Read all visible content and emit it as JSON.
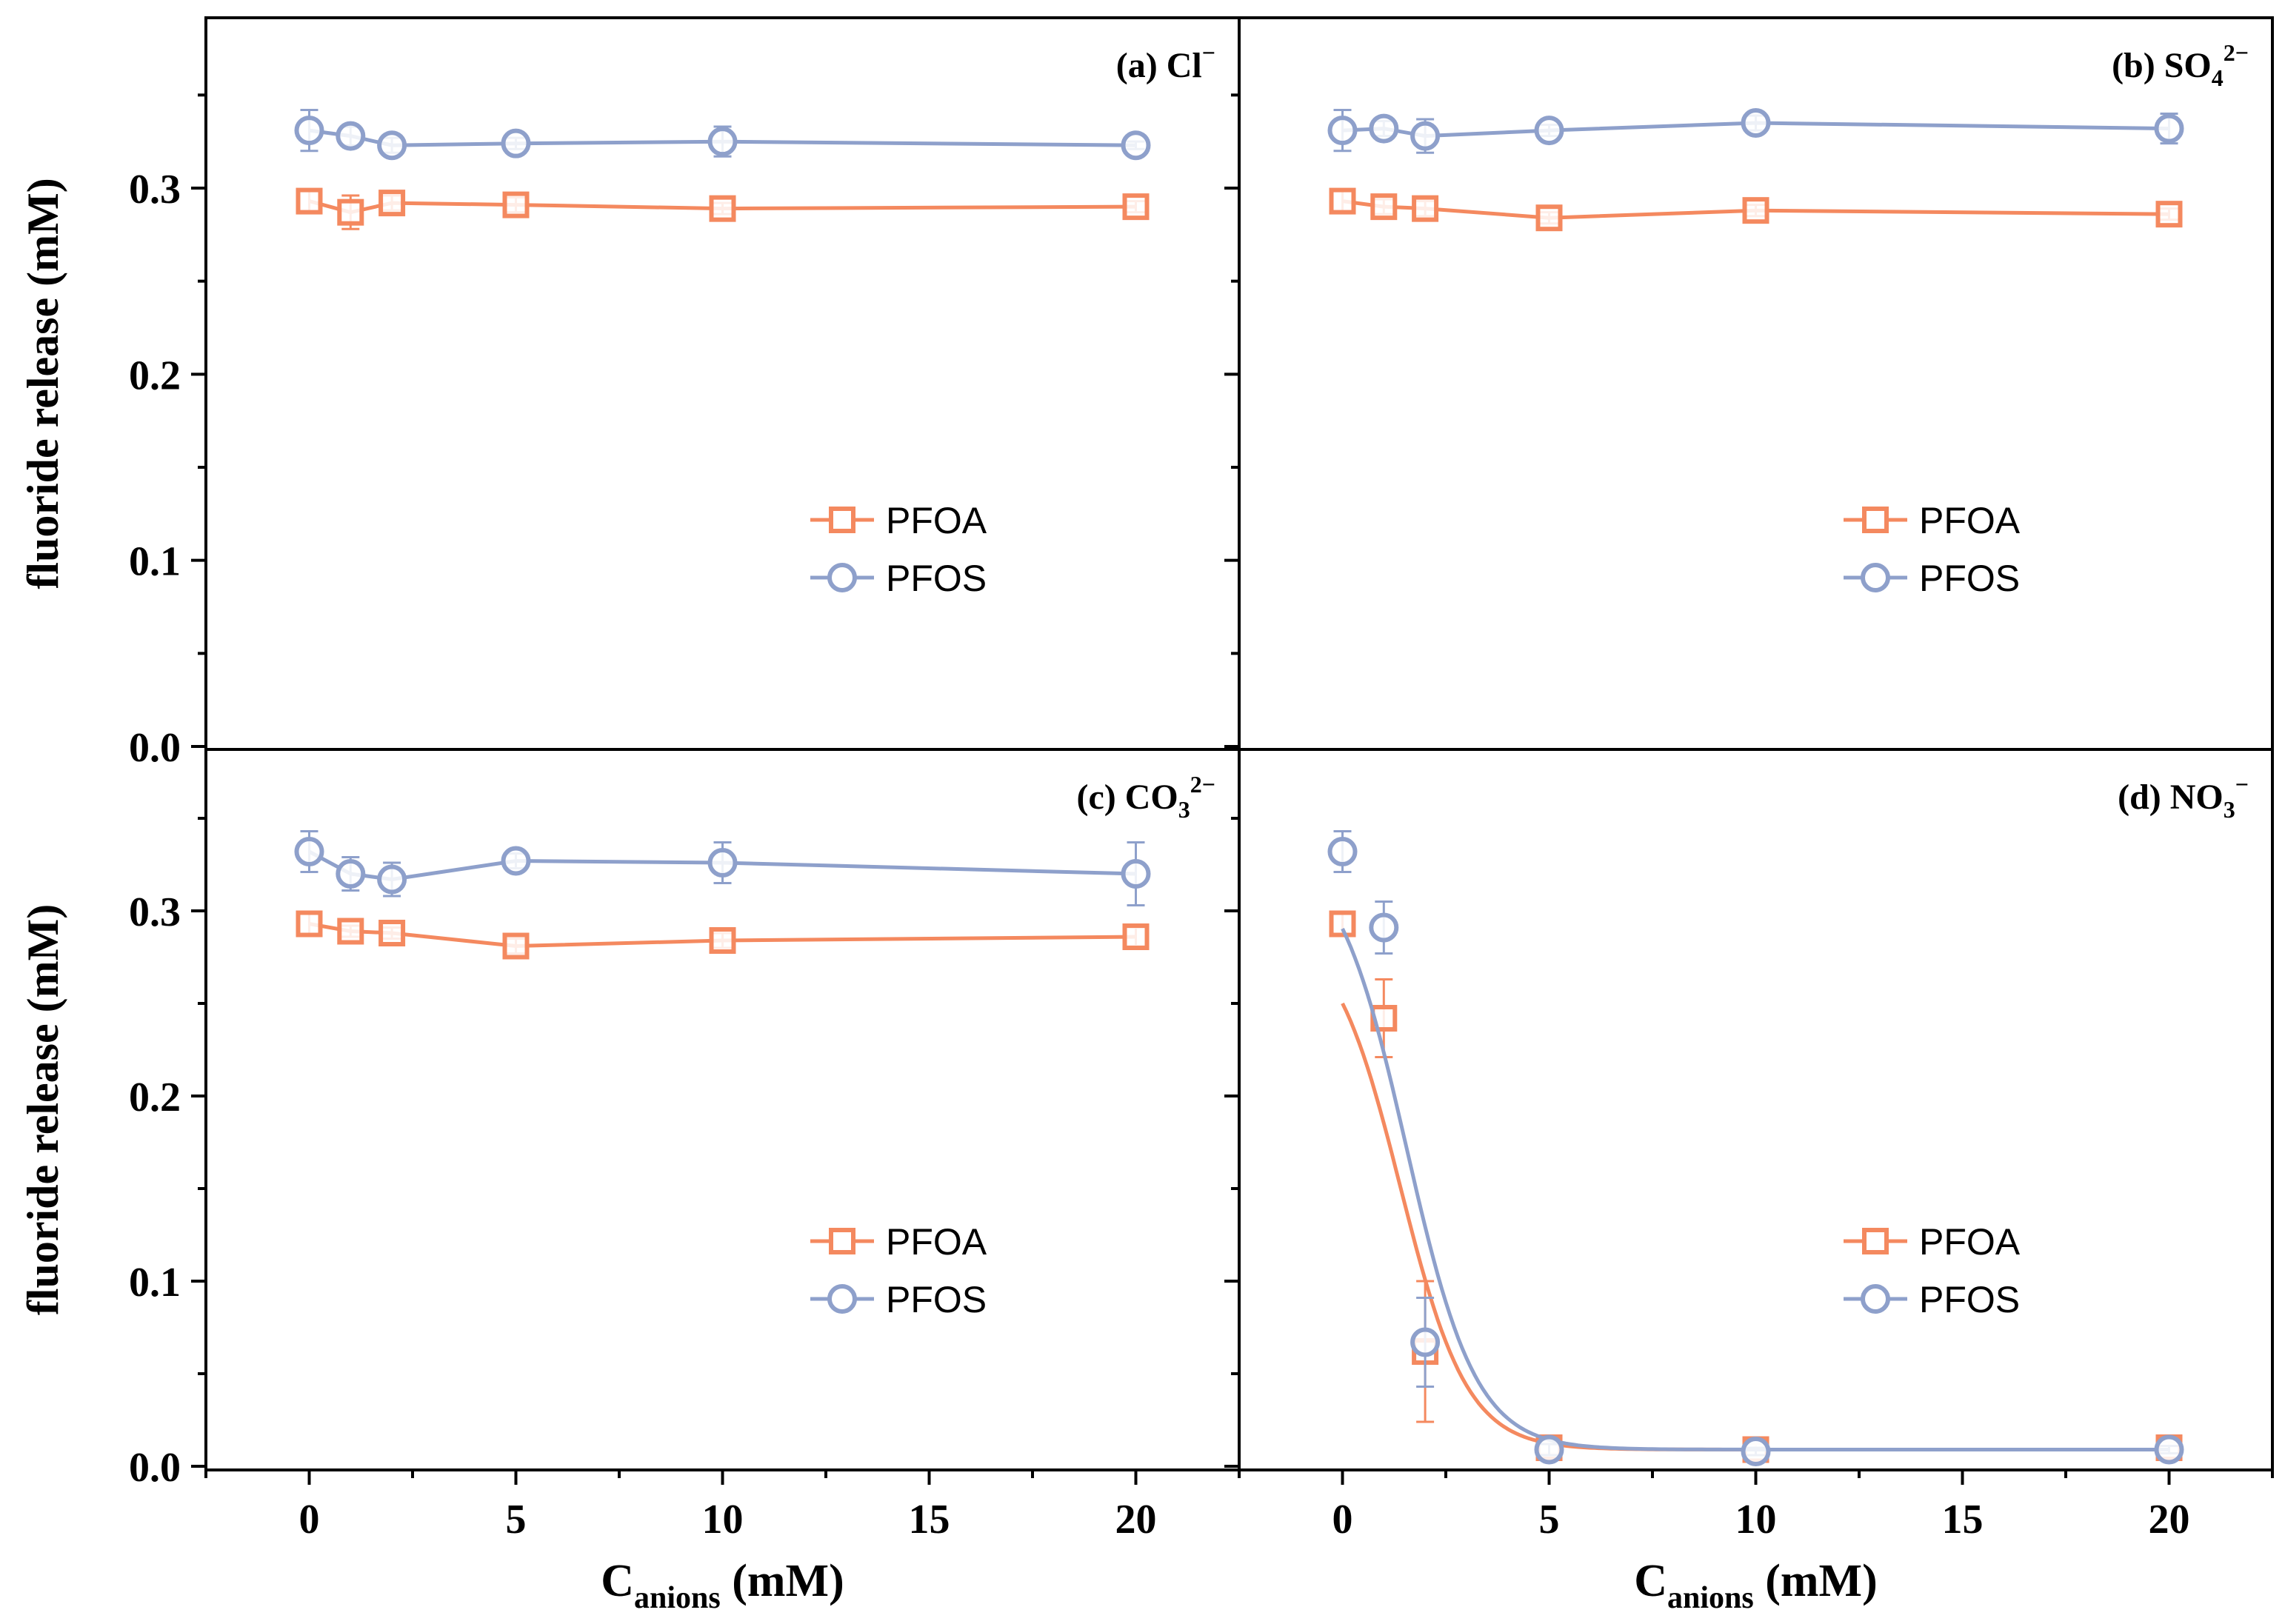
{
  "chart_data": [
    {
      "type": "line",
      "panel_label": "(a) Cl",
      "ion_sub": "",
      "ion_sup": "−",
      "xlabel_main": "C",
      "xlabel_sub": "anions",
      "xlabel_unit": " (mM)",
      "ylabel": "fluoride release (mM)",
      "xlim": [
        -2.5,
        22.5
      ],
      "ylim": [
        0.0,
        0.39
      ],
      "xticks": [
        "0",
        "5",
        "10",
        "15",
        "20"
      ],
      "yticks": [
        "0.0",
        "0.1",
        "0.2",
        "0.3"
      ],
      "legend": {
        "position": "center-right",
        "entries": [
          "PFOA",
          "PFOS"
        ]
      },
      "series": [
        {
          "name": "PFOA",
          "color": "#f4895f",
          "marker": "square",
          "x": [
            0,
            1,
            2,
            5,
            10,
            20
          ],
          "y": [
            0.293,
            0.287,
            0.292,
            0.291,
            0.289,
            0.29
          ],
          "err": [
            0.006,
            0.009,
            0.004,
            0.004,
            0.003,
            0.003
          ]
        },
        {
          "name": "PFOS",
          "color": "#8ea0cb",
          "marker": "circle",
          "x": [
            0,
            1,
            2,
            5,
            10,
            20
          ],
          "y": [
            0.331,
            0.328,
            0.323,
            0.324,
            0.325,
            0.323
          ],
          "err": [
            0.011,
            0.005,
            0.004,
            0.003,
            0.008,
            0.002
          ]
        }
      ]
    },
    {
      "type": "line",
      "panel_label": "(b) SO",
      "ion_sub": "4",
      "ion_sup": "2−",
      "xlabel_main": "",
      "xlabel_sub": "",
      "xlabel_unit": "",
      "ylabel": "",
      "xlim": [
        -2.5,
        22.5
      ],
      "ylim": [
        0.0,
        0.39
      ],
      "xticks": [],
      "yticks": [],
      "legend": {
        "position": "center-right",
        "entries": [
          "PFOA",
          "PFOS"
        ]
      },
      "series": [
        {
          "name": "PFOA",
          "color": "#f4895f",
          "marker": "square",
          "x": [
            0,
            1,
            2,
            5,
            10,
            20
          ],
          "y": [
            0.293,
            0.29,
            0.289,
            0.284,
            0.288,
            0.286
          ],
          "err": [
            0.006,
            0.004,
            0.004,
            0.003,
            0.003,
            0.003
          ]
        },
        {
          "name": "PFOS",
          "color": "#8ea0cb",
          "marker": "circle",
          "x": [
            0,
            1,
            2,
            5,
            10,
            20
          ],
          "y": [
            0.331,
            0.332,
            0.328,
            0.331,
            0.335,
            0.332
          ],
          "err": [
            0.011,
            0.004,
            0.009,
            0.003,
            0.004,
            0.008
          ]
        }
      ]
    },
    {
      "type": "line",
      "panel_label": "(c) CO",
      "ion_sub": "3",
      "ion_sup": "2−",
      "xlabel_main": "",
      "xlabel_sub": "",
      "xlabel_unit": "",
      "ylabel": "fluoride release (mM)",
      "xlim": [
        -2.5,
        22.5
      ],
      "ylim": [
        0.0,
        0.39
      ],
      "xticks": [],
      "yticks": [
        "0.0",
        "0.1",
        "0.2",
        "0.3"
      ],
      "legend": {
        "position": "center-right",
        "entries": [
          "PFOA",
          "PFOS"
        ]
      },
      "series": [
        {
          "name": "PFOA",
          "color": "#f4895f",
          "marker": "square",
          "x": [
            0,
            1,
            2,
            5,
            10,
            20
          ],
          "y": [
            0.293,
            0.289,
            0.288,
            0.281,
            0.284,
            0.286
          ],
          "err": [
            0.006,
            0.003,
            0.003,
            0.004,
            0.004,
            0.005
          ]
        },
        {
          "name": "PFOS",
          "color": "#8ea0cb",
          "marker": "circle",
          "x": [
            0,
            1,
            2,
            5,
            10,
            20
          ],
          "y": [
            0.332,
            0.32,
            0.317,
            0.327,
            0.326,
            0.32
          ],
          "err": [
            0.011,
            0.009,
            0.009,
            0.004,
            0.011,
            0.017
          ]
        }
      ]
    },
    {
      "type": "line",
      "panel_label": "(d) NO",
      "ion_sub": "3",
      "ion_sup": "−",
      "xlabel_main": "",
      "xlabel_sub": "",
      "xlabel_unit": "",
      "ylabel": "",
      "xlim": [
        -2.5,
        22.5
      ],
      "ylim": [
        0.0,
        0.39
      ],
      "xticks": [],
      "yticks": [],
      "legend": {
        "position": "center-right",
        "entries": [
          "PFOA",
          "PFOS"
        ]
      },
      "series": [
        {
          "name": "PFOA",
          "color": "#f4895f",
          "marker": "square",
          "fit": "sigmoid",
          "fit_params": {
            "bottom": 0.009,
            "top": 0.293,
            "x0": 1.4,
            "k": 1.12
          },
          "x": [
            0,
            1,
            2,
            5,
            10,
            20
          ],
          "y": [
            0.293,
            0.242,
            0.062,
            0.01,
            0.009,
            0.01
          ],
          "err": [
            0.006,
            0.021,
            0.038,
            0.003,
            0.003,
            0.003
          ]
        },
        {
          "name": "PFOS",
          "color": "#8ea0cb",
          "marker": "circle",
          "fit": "sigmoid",
          "fit_params": {
            "bottom": 0.009,
            "top": 0.335,
            "x0": 1.55,
            "k": 1.08
          },
          "x": [
            0,
            1,
            2,
            5,
            10,
            20
          ],
          "y": [
            0.332,
            0.291,
            0.067,
            0.009,
            0.008,
            0.009
          ],
          "err": [
            0.011,
            0.014,
            0.024,
            0.003,
            0.002,
            0.002
          ]
        }
      ]
    }
  ],
  "bottom_axis": {
    "xticks": [
      "0",
      "5",
      "10",
      "15",
      "20"
    ],
    "xlabel_main": "C",
    "xlabel_sub": "anions",
    "xlabel_unit": " (mM)"
  }
}
